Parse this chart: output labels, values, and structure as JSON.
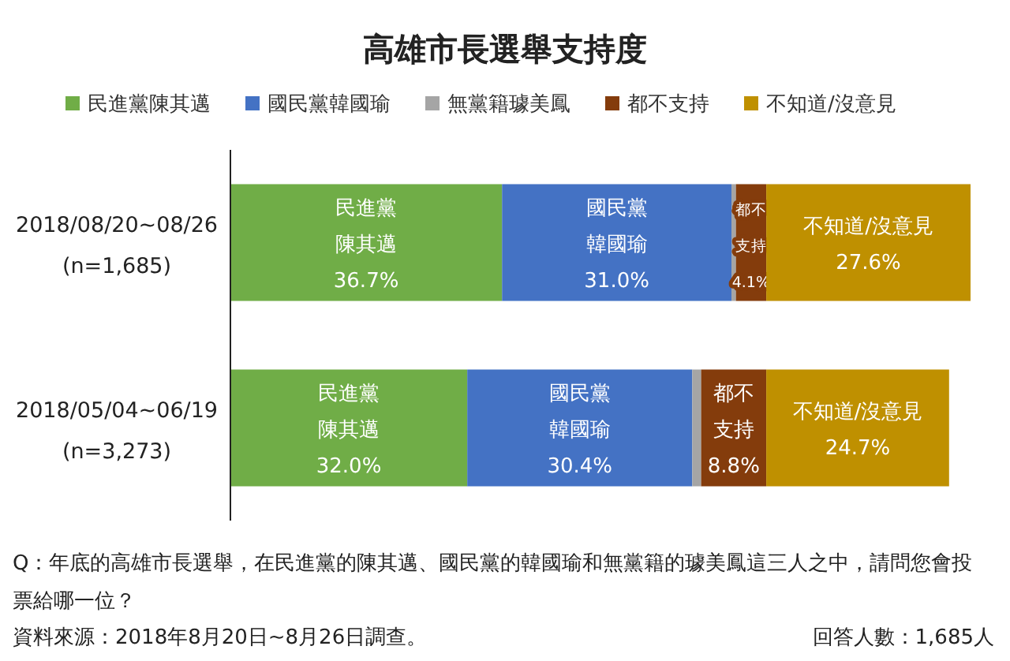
{
  "chart_data": {
    "type": "bar",
    "orientation": "horizontal",
    "stacked": true,
    "title": "高雄市長選舉支持度",
    "categories": [
      "2018/08/20~08/26\n(n=1,685)",
      "2018/05/04~06/19\n(n=3,273)"
    ],
    "series": [
      {
        "name": "民進黨陳其邁",
        "color": "#70ad47",
        "values": [
          36.7,
          32.0
        ],
        "value_labels": [
          "民進黨陳其邁36.7%",
          "民進黨陳其邁32.0%"
        ]
      },
      {
        "name": "國民黨韓國瑜",
        "color": "#4472c4",
        "values": [
          31.0,
          30.4
        ],
        "value_labels": [
          "國民黨韓國瑜31.0%",
          "國民黨韓國瑜30.4%"
        ]
      },
      {
        "name": "無黨籍璩美鳳",
        "color": "#a5a5a5",
        "values": [
          0.6,
          1.2
        ],
        "value_labels": [
          null,
          null
        ]
      },
      {
        "name": "都不支持",
        "color": "#843c0c",
        "values": [
          4.1,
          8.8
        ],
        "value_labels": [
          "都不支持4.1%",
          "都不支持8.8%"
        ]
      },
      {
        "name": "不知道/沒意見",
        "color": "#bf9000",
        "values": [
          27.6,
          24.7
        ],
        "value_labels": [
          "不知道/沒意見27.6%",
          "不知道/沒意見24.7%"
        ]
      }
    ],
    "xlim": [
      0,
      100
    ],
    "tick_labels": "y",
    "legend": "top",
    "annotations": [
      "Q：年底的高雄市長選舉，在民進黨的陳其邁、國民黨的韓國瑜和無黨籍的璩美鳳這三人之中，請問您會投票給哪一位？",
      "資料來源：2018年8月20日~8月26日調查。",
      "回答人數：1,685人"
    ]
  }
}
